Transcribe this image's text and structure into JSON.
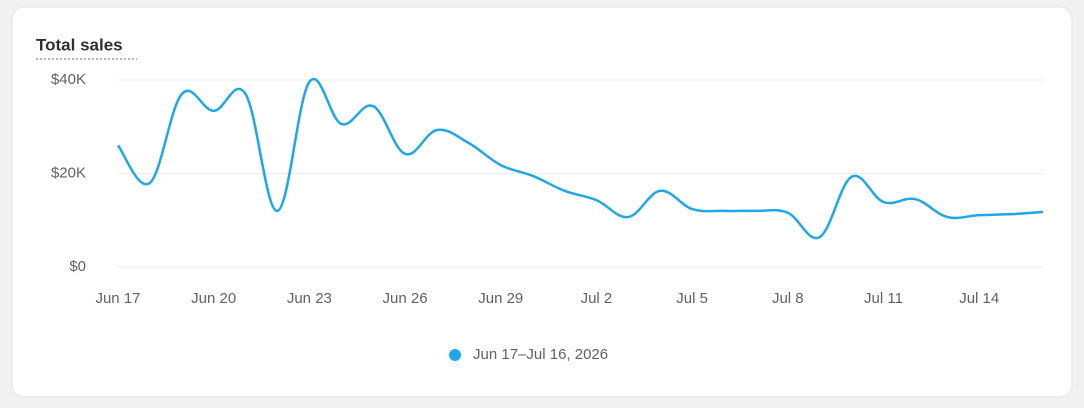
{
  "chart_data": {
    "type": "line",
    "title": "Total sales",
    "categories": [
      "Jun 17",
      null,
      null,
      "Jun 20",
      null,
      null,
      "Jun 23",
      null,
      null,
      "Jun 26",
      null,
      null,
      "Jun 29",
      null,
      null,
      "Jul 2",
      null,
      null,
      "Jul 5",
      null,
      null,
      "Jul 8",
      null,
      null,
      "Jul 11",
      null,
      null,
      "Jul 14",
      null,
      null
    ],
    "series": [
      {
        "name": "Jun 17–Jul 16, 2026",
        "color": "#1fa7e6",
        "values": [
          26000,
          18000,
          37000,
          33400,
          37000,
          12000,
          39600,
          30600,
          34400,
          24200,
          29300,
          26500,
          21800,
          19500,
          16300,
          14300,
          10700,
          16300,
          12400,
          12000,
          12000,
          11600,
          6400,
          19300,
          13900,
          14500,
          10700,
          11100,
          11300,
          11800
        ]
      }
    ],
    "ylim": [
      0,
      40000
    ],
    "yticks": [
      {
        "value": 0,
        "label": "$0"
      },
      {
        "value": 20000,
        "label": "$20K"
      },
      {
        "value": 40000,
        "label": "$40K"
      }
    ],
    "grid": true
  }
}
